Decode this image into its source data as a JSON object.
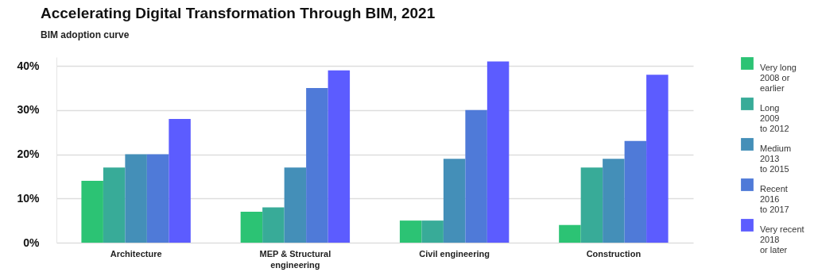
{
  "chart_data": {
    "type": "bar",
    "title": "Accelerating Digital Transformation Through BIM, 2021",
    "subtitle": "BIM adoption curve",
    "categories": [
      "Architecture",
      "MEP & Structural\nengineering",
      "Civil engineering",
      "Construction"
    ],
    "series": [
      {
        "name": "Very long\n2008 or\nearlier",
        "color": "#2cc374",
        "values": [
          14,
          7,
          5,
          4
        ]
      },
      {
        "name": "Long\n2009\nto 2012",
        "color": "#38ab98",
        "values": [
          17,
          8,
          5,
          17
        ]
      },
      {
        "name": "Medium\n2013\nto 2015",
        "color": "#448fb8",
        "values": [
          20,
          17,
          19,
          19
        ]
      },
      {
        "name": "Recent\n2016\nto 2017",
        "color": "#4f7ad8",
        "values": [
          20,
          35,
          30,
          23
        ]
      },
      {
        "name": "Very recent\n2018\nor later",
        "color": "#5c5cff",
        "values": [
          28,
          39,
          41,
          38
        ]
      }
    ],
    "ylim": [
      0,
      42
    ],
    "yticks": [
      {
        "value": 0,
        "label": "0%"
      },
      {
        "value": 10,
        "label": "10%"
      },
      {
        "value": 20,
        "label": "20%"
      },
      {
        "value": 30,
        "label": "30%"
      },
      {
        "value": 40,
        "label": "40%"
      }
    ],
    "grid": "y",
    "legend": "right"
  }
}
